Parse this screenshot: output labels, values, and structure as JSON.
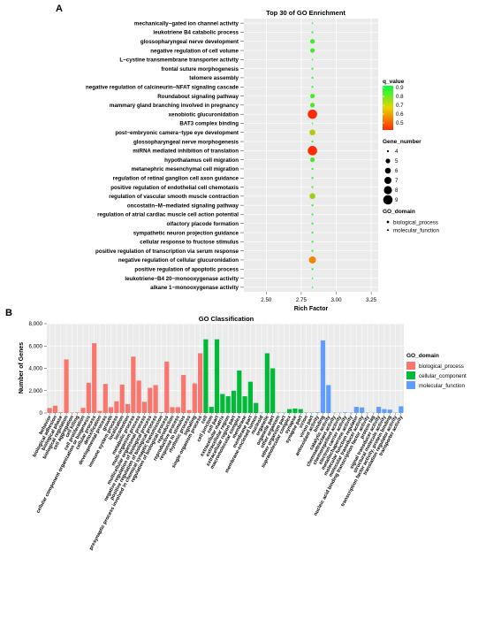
{
  "panels": {
    "a": "A",
    "b": "B"
  },
  "chart_data": [
    {
      "type": "scatter",
      "title": "Top 30 of GO Enrichment",
      "xlabel": "Rich Factor",
      "ylabel": "",
      "xlim": [
        2.34,
        3.3
      ],
      "xticks": [
        "2.50",
        "2.75",
        "3.00",
        "3.25"
      ],
      "xtick_values": [
        2.5,
        2.75,
        3.0,
        3.25
      ],
      "grid": true,
      "background": "#ebebeb",
      "categories": [
        "mechanically−gated ion channel activity",
        "leukotriene B4 catabolic process",
        "glossopharyngeal nerve development",
        "negative regulation of cell volume",
        "L−cystine transmembrane transporter activity",
        "frontal suture morphogenesis",
        "telomere assembly",
        "negative regulation of calcineurin−NFAT signaling cascade",
        "Roundabout signaling pathway",
        "mammary gland branching involved in pregnancy",
        "xenobiotic glucuronidation",
        "BAT3 complex binding",
        "post−embryonic camera−type eye development",
        "glossopharyngeal nerve morphogenesis",
        "miRNA mediated inhibition of translation",
        "hypothalamus cell migration",
        "metanephric mesenchymal cell migration",
        "regulation of retinal ganglion cell axon guidance",
        "positive regulation of endothelial cell chemotaxis",
        "regulation of vascular smooth muscle contraction",
        "oncostatin−M−mediated signaling pathway",
        "regulation of atrial cardiac muscle cell action potential",
        "olfactory placode formation",
        "sympathetic neuron projection guidance",
        "cellular response to fructose stimulus",
        "positive regulation of transcription via serum response",
        "negative regulation of cellular glucuronidation",
        "positive regulation of apoptotic process",
        "leukotriene−B4 20−monooxygenase activity",
        "alkane 1−monooxygenase activity"
      ],
      "x": [
        2.83,
        2.83,
        2.83,
        2.83,
        2.83,
        2.83,
        2.83,
        2.83,
        2.83,
        2.83,
        2.83,
        2.83,
        2.83,
        2.83,
        2.83,
        2.83,
        2.83,
        2.83,
        2.83,
        2.83,
        2.83,
        2.83,
        2.83,
        2.83,
        2.83,
        2.83,
        2.83,
        2.83,
        2.83,
        2.83
      ],
      "gene_number": [
        4,
        4,
        5,
        5,
        4,
        4,
        4,
        4,
        5,
        5,
        9,
        4,
        6,
        4,
        9,
        5,
        4,
        4,
        4,
        6,
        4,
        4,
        4,
        4,
        4,
        4,
        7,
        4,
        4,
        4
      ],
      "q_value": [
        0.88,
        0.88,
        0.85,
        0.85,
        0.88,
        0.88,
        0.88,
        0.88,
        0.84,
        0.84,
        0.42,
        0.88,
        0.72,
        0.88,
        0.42,
        0.84,
        0.88,
        0.88,
        0.88,
        0.75,
        0.88,
        0.88,
        0.88,
        0.88,
        0.88,
        0.88,
        0.58,
        0.88,
        0.88,
        0.88
      ],
      "go_domain": [
        "mf",
        "bp",
        "bp",
        "bp",
        "mf",
        "bp",
        "bp",
        "bp",
        "bp",
        "bp",
        "bp",
        "mf",
        "bp",
        "bp",
        "bp",
        "bp",
        "bp",
        "bp",
        "bp",
        "bp",
        "bp",
        "bp",
        "bp",
        "bp",
        "bp",
        "bp",
        "bp",
        "bp",
        "mf",
        "mf"
      ],
      "legend": {
        "q_title": "q_value",
        "q_ticks": [
          "0.9",
          "0.8",
          "0.7",
          "0.6",
          "0.5"
        ],
        "q_tick_values": [
          0.9,
          0.8,
          0.7,
          0.6,
          0.5
        ],
        "q_range": [
          0.42,
          0.92
        ],
        "gene_title": "Gene_number",
        "gene_values": [
          "4",
          "5",
          "6",
          "7",
          "8",
          "9"
        ],
        "domain_title": "GO_domain",
        "domain_values": [
          "biological_process",
          "molecular_function"
        ],
        "placement": "right"
      },
      "colors": {
        "low_q": "#ff2a00",
        "mid_q": "#e8b800",
        "high_q": "#00ff3c"
      }
    },
    {
      "type": "bar",
      "title": "GO Classification",
      "xlabel": "",
      "ylabel": "Number of Genes",
      "ylim": [
        0,
        8000
      ],
      "yticks": [
        "0",
        "2,000",
        "4,000",
        "6,000",
        "8,000"
      ],
      "ytick_values": [
        0,
        2000,
        4000,
        6000,
        8000
      ],
      "grid": true,
      "background": "#ebebeb",
      "series": [
        {
          "name": "biological_process",
          "color": "#f8766d",
          "categories": [
            "behavior",
            "biological adhesion",
            "biological phase",
            "biological regulation",
            "cell aggregation",
            "cell killing",
            "cell proliferation",
            "cellular component organization or biogenesis",
            "cellular process",
            "detoxification",
            "developmental process",
            "growth",
            "immune system process",
            "localization",
            "locomotion",
            "metabolic process",
            "multi-organism process",
            "multicellular organismal process",
            "negative regulation of biological process",
            "positive regulation of biological process",
            "presynaptic process involved in chemical synaptic transmission",
            "regulation of biological process",
            "reproduction",
            "reproductive process",
            "response to stimulus",
            "rhythmic process",
            "signaling",
            "single-organism process"
          ],
          "values": [
            450,
            650,
            60,
            4800,
            30,
            60,
            460,
            2700,
            6250,
            180,
            2600,
            520,
            1050,
            2550,
            800,
            5050,
            2900,
            1000,
            2250,
            2500,
            80,
            4600,
            520,
            520,
            3400,
            260,
            2650,
            5350
          ]
        },
        {
          "name": "cellular_component",
          "color": "#00ba38",
          "categories": [
            "cell",
            "cell junction",
            "cell part",
            "extracellular matrix",
            "extracellular region",
            "extracellular region part",
            "macromolecular complex",
            "membrane",
            "membrane part",
            "membrane-enclosed lumen",
            "nucleoid",
            "organelle",
            "organelle part",
            "other organism",
            "other organism part",
            "supramolecular complex",
            "synapse",
            "synapse part",
            "virion",
            "virion part"
          ],
          "values": [
            6600,
            550,
            6600,
            1700,
            1500,
            2000,
            3800,
            1500,
            2800,
            900,
            30,
            5350,
            4000,
            30,
            30,
            350,
            400,
            350,
            30,
            30
          ]
        },
        {
          "name": "molecular_function",
          "color": "#619cff",
          "categories": [
            "antioxidant activity",
            "binding",
            "catalytic activity",
            "chemoattractant activity",
            "chemorepellent activity",
            "electron carrier activity",
            "metallochaperone activity",
            "molecular function regulator",
            "molecular transducer activity",
            "nucleic acid binding transcription factor activity",
            "protein tag",
            "signal transducer activity",
            "structural molecule activity",
            "transcription factor activity, protein binding",
            "translation regulator activity",
            "transporter activity"
          ],
          "values": [
            60,
            6500,
            2500,
            30,
            30,
            60,
            30,
            550,
            500,
            30,
            30,
            550,
            350,
            300,
            30,
            600
          ]
        }
      ],
      "legend": {
        "title": "GO_domain",
        "placement": "right"
      }
    }
  ]
}
